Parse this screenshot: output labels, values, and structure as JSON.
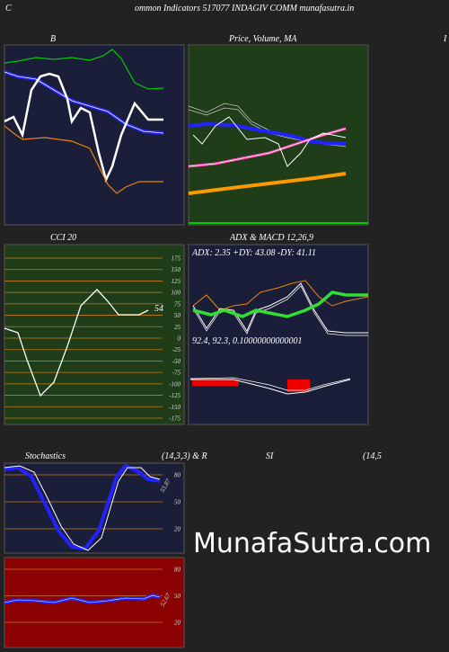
{
  "header": {
    "left": "C",
    "title": "ommon  Indicators 517077 INDAGIV COMM munafasutra.in",
    "right": "I"
  },
  "panels": {
    "bollinger": {
      "title": "B"
    },
    "price": {
      "title": "Price,  Volume,  MA"
    },
    "cci": {
      "title": "CCI 20",
      "yticks": [
        175,
        150,
        125,
        100,
        75,
        50,
        25,
        0,
        -25,
        -50,
        -75,
        -100,
        -125,
        -150,
        -175
      ],
      "value_label": "54"
    },
    "adx": {
      "title": "ADX  & MACD 12,26,9",
      "adx_text": "ADX: 2.35 +DY: 43.08  -DY: 41.11",
      "macd_text": "92.4,  92.3,  0.10000000000001"
    },
    "stochastics": {
      "title": "Stochastics",
      "params": "(14,3,3) & R",
      "yticks": [
        80,
        50,
        20
      ],
      "value_label": "55.87"
    },
    "rsi": {
      "title": "SI",
      "params": "(14,5",
      "yticks": [
        80,
        50,
        20
      ],
      "value_label": "52.67"
    }
  },
  "watermark": "MunafaSutra.com"
}
